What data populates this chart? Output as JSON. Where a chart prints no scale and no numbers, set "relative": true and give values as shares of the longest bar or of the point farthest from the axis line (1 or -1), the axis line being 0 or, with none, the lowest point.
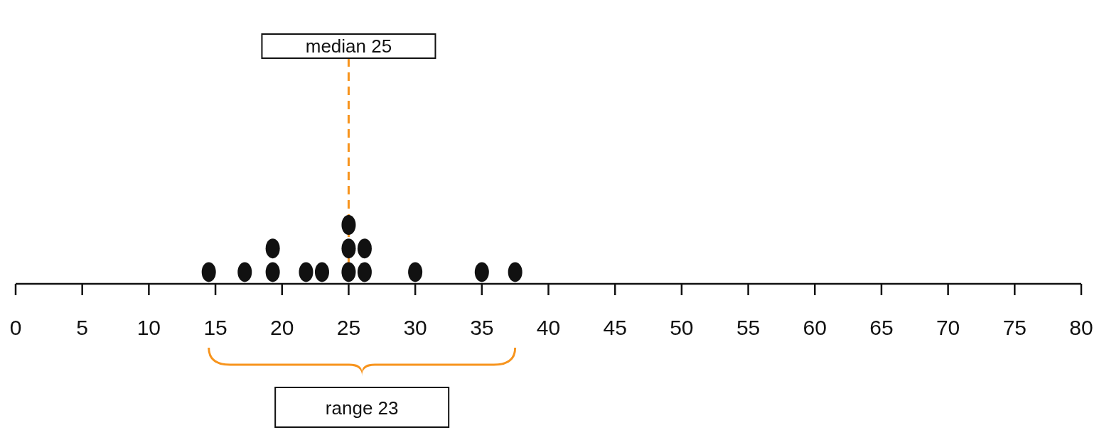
{
  "chart_data": {
    "type": "scatter",
    "relative": true,
    "x": [
      14.5,
      17.2,
      19.3,
      19.3,
      21.8,
      23,
      25,
      25,
      25,
      26.2,
      26.2,
      30,
      35,
      37.5
    ],
    "values": [
      0.2,
      0.2,
      0.2,
      0.6,
      0.2,
      0.2,
      0.2,
      0.6,
      1,
      0.2,
      0.6,
      0.2,
      0.2,
      0.2
    ],
    "color": "#111111",
    "marker": "circle",
    "grid": false,
    "tick_labels": "x",
    "xlim": [
      0,
      80
    ],
    "xticks": [
      0,
      5,
      10,
      15,
      20,
      25,
      30,
      35,
      40,
      45,
      50,
      55,
      60,
      65,
      70,
      75,
      80
    ],
    "ref_lines": [
      {
        "axis": "x",
        "value": 25,
        "label": "median 25",
        "color": "#f7941d",
        "line_style": "dashed"
      }
    ],
    "annotations": [
      "range 23"
    ]
  }
}
